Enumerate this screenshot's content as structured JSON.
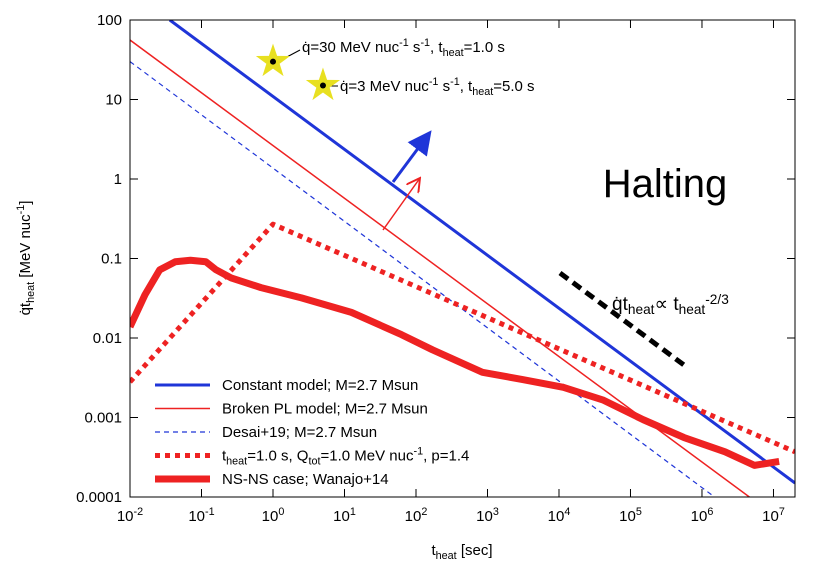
{
  "chart_data": {
    "type": "line",
    "x_label": "t_{heat} [sec]",
    "y_label": "q̇t_{heat} [MeV nuc^{-1}]",
    "xscale": "log",
    "yscale": "log",
    "xlim": [
      0.01,
      20000000
    ],
    "ylim": [
      0.0001,
      100
    ],
    "xticks": [
      {
        "value": 0.01,
        "label": "10^{-2}"
      },
      {
        "value": 0.1,
        "label": "10^{-1}"
      },
      {
        "value": 1,
        "label": "10^{0}"
      },
      {
        "value": 10,
        "label": "10^{1}"
      },
      {
        "value": 100,
        "label": "10^{2}"
      },
      {
        "value": 1000,
        "label": "10^{3}"
      },
      {
        "value": 10000,
        "label": "10^{4}"
      },
      {
        "value": 100000,
        "label": "10^{5}"
      },
      {
        "value": 1000000,
        "label": "10^{6}"
      },
      {
        "value": 10000000,
        "label": "10^{7}"
      }
    ],
    "yticks": [
      0.0001,
      0.001,
      0.01,
      0.1,
      1,
      10,
      100
    ],
    "legend": "lower left",
    "series": [
      {
        "name": "Constant model; M=2.7 Msun",
        "color": "#1f35d8",
        "line_width": 3,
        "dash": "none",
        "x": [
          0.036,
          20000000
        ],
        "values": [
          100,
          0.00015
        ]
      },
      {
        "name": "Broken PL model; M=2.7 Msun",
        "color": "#ee2222",
        "line_width": 1.5,
        "dash": "none",
        "x": [
          0.01,
          4600000
        ],
        "values": [
          56,
          0.0001
        ]
      },
      {
        "name": "Desai+19; M=2.7 Msun",
        "color": "#1f35d8",
        "line_width": 1.2,
        "dash": "5 4",
        "x": [
          0.01,
          1500000
        ],
        "values": [
          30,
          0.0001
        ]
      },
      {
        "name": "t_{heat}=1.0 s, Q_{tot}=1.0 MeV nuc^{-1}, p=1.4",
        "color": "#ee2222",
        "line_width": 5,
        "dash": "5 5",
        "x": [
          0.01,
          1,
          20000000
        ],
        "values": [
          0.0028,
          0.27,
          0.00037
        ]
      },
      {
        "name": "NS-NS case; Wanajo+14",
        "color": "#ee2222",
        "line_width": 7,
        "dash": "none",
        "x": [
          0.01,
          0.0162,
          0.026,
          0.043,
          0.07,
          0.115,
          0.16,
          0.26,
          0.68,
          2.5,
          12.5,
          63,
          170,
          850,
          3100,
          11500,
          42000,
          150000,
          560000,
          2100000,
          5400000,
          12000000
        ],
        "values": [
          0.0138,
          0.035,
          0.072,
          0.091,
          0.095,
          0.091,
          0.072,
          0.057,
          0.043,
          0.032,
          0.021,
          0.011,
          0.0071,
          0.0037,
          0.003,
          0.0024,
          0.00165,
          0.00094,
          0.00056,
          0.00037,
          0.00025,
          0.00028
        ]
      }
    ],
    "markers": {
      "color": "#e8e020",
      "x": [
        1,
        5
      ],
      "values": [
        30,
        15
      ]
    },
    "annotations": [
      "q̇=30 MeV nuc^{-1} s^{-1}, t_{heat}=1.0 s",
      "q̇=3 MeV nuc^{-1} s^{-1}, t_{heat}=5.0 s",
      "Halting",
      "q̇t_{heat}∝ t_{heat}^{-2/3}"
    ]
  }
}
